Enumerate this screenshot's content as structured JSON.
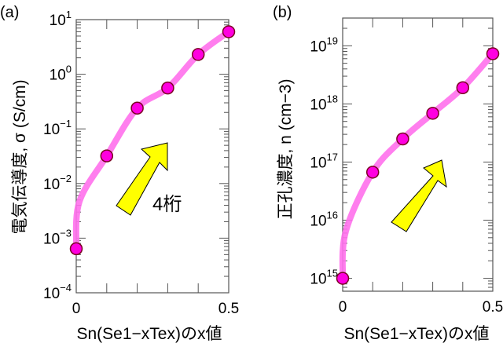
{
  "chart_data": [
    {
      "panel_label": "(a)",
      "type": "scatter",
      "ylabel": "電気伝導度, σ (S/cm)",
      "xlabel": "Sn(Se1−xTex)のx値",
      "xlim": [
        0,
        0.5
      ],
      "ylim": [
        0.0001,
        10
      ],
      "yscale": "log",
      "xticks": [
        "0",
        "0.5"
      ],
      "yticks": [
        {
          "base": "10",
          "exp": "−4"
        },
        {
          "base": "10",
          "exp": "−3"
        },
        {
          "base": "10",
          "exp": "−2"
        },
        {
          "base": "10",
          "exp": "−1"
        },
        {
          "base": "10",
          "exp": "0"
        },
        {
          "base": "10",
          "exp": "1"
        }
      ],
      "x": [
        0,
        0.1,
        0.2,
        0.3,
        0.4,
        0.5
      ],
      "y": [
        0.00064,
        0.032,
        0.24,
        0.56,
        2.3,
        6.0
      ],
      "annotation": "4桁",
      "grid": false,
      "colors": {
        "marker": "#ff00e0",
        "marker_edge": "#7a0020",
        "trend": "#ff70ec",
        "arrow": "#ffff00"
      }
    },
    {
      "panel_label": "(b)",
      "type": "scatter",
      "ylabel": "正孔濃度, n (cm−3)",
      "xlabel": "Sn(Se1−xTex)のx値",
      "xlim": [
        0,
        0.5
      ],
      "ylim": [
        600000000000000.0,
        3e+19
      ],
      "yscale": "log",
      "xticks": [
        "0",
        "0.5"
      ],
      "yticks": [
        {
          "base": "10",
          "exp": "15"
        },
        {
          "base": "10",
          "exp": "16"
        },
        {
          "base": "10",
          "exp": "17"
        },
        {
          "base": "10",
          "exp": "18"
        },
        {
          "base": "10",
          "exp": "19"
        }
      ],
      "x": [
        0,
        0.1,
        0.2,
        0.3,
        0.4,
        0.5
      ],
      "y": [
        1000000000000000.0,
        6.7e+16,
        2.5e+17,
        6.9e+17,
        1.9e+18,
        7.3e+18
      ],
      "grid": false,
      "colors": {
        "marker": "#ff00e0",
        "marker_edge": "#7a0020",
        "trend": "#ff70ec",
        "arrow": "#ffff00"
      }
    }
  ]
}
